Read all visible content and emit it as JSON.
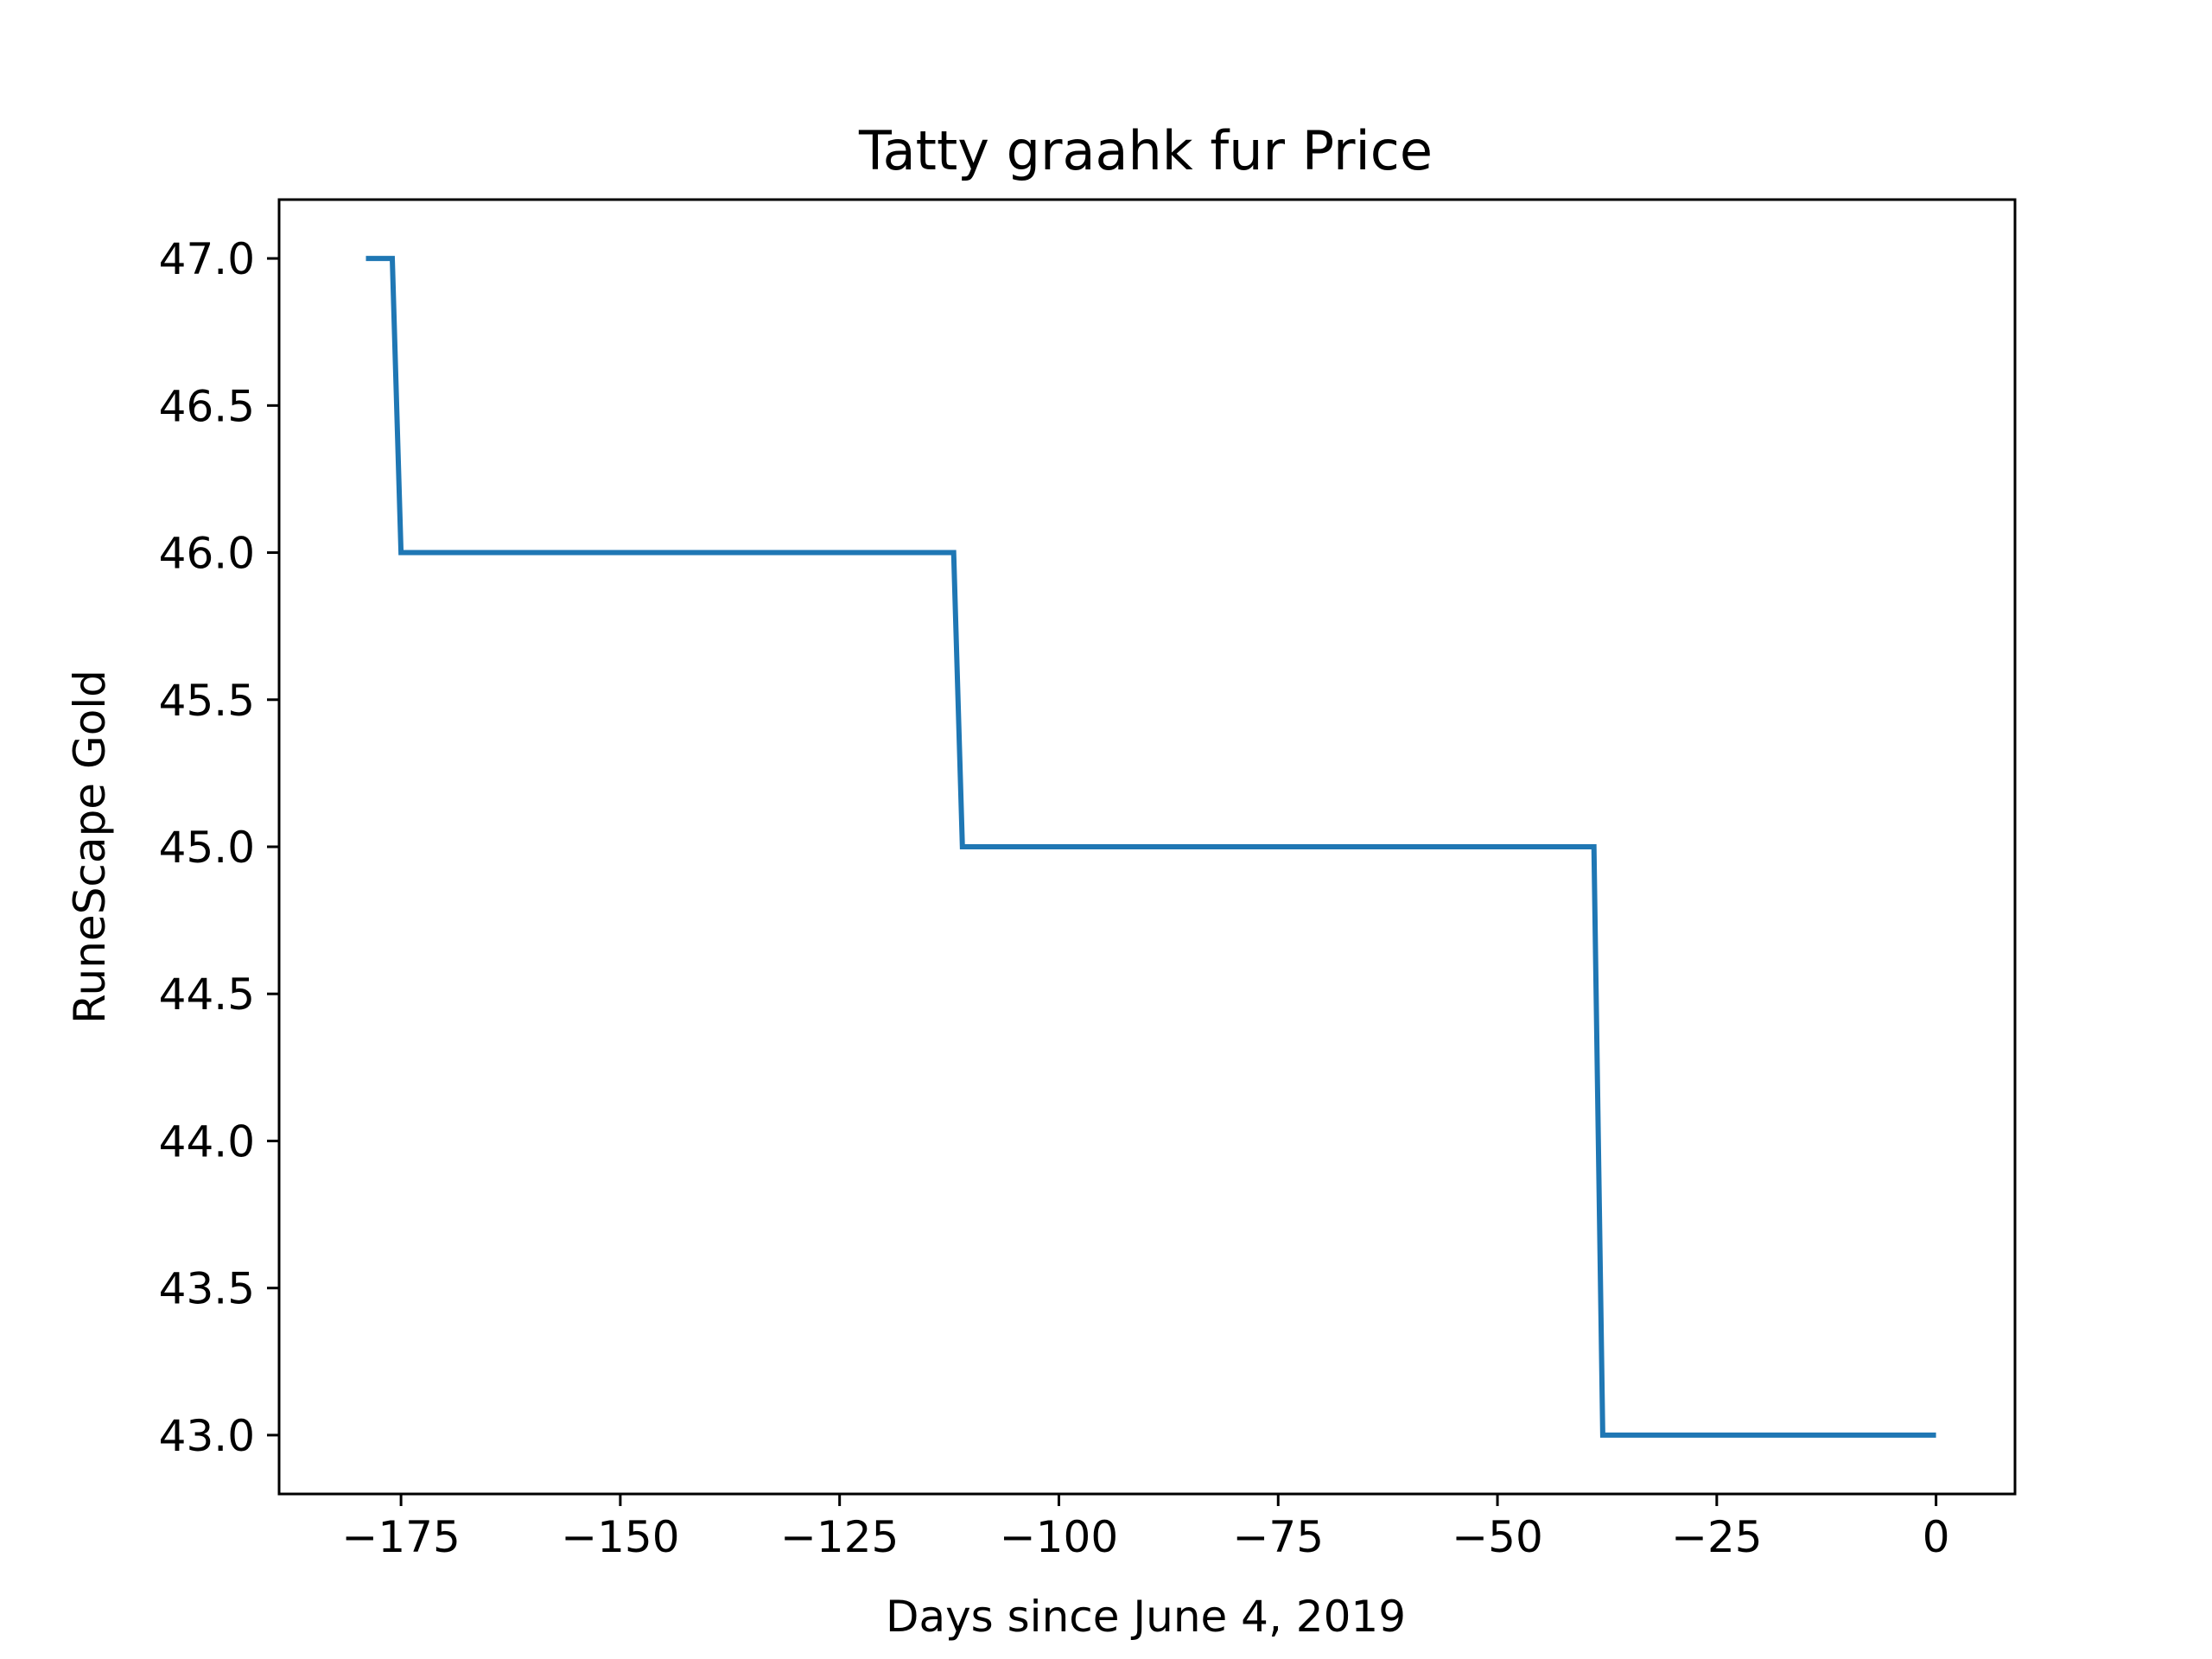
{
  "chart_data": {
    "type": "line",
    "title": "Tatty graahk fur Price",
    "xlabel": "Days since June 4, 2019",
    "ylabel": "RuneScape Gold",
    "xlim": [
      -188.9,
      9
    ],
    "ylim": [
      42.8,
      47.2
    ],
    "xticks": [
      -175,
      -150,
      -125,
      -100,
      -75,
      -50,
      -25,
      0
    ],
    "xtick_labels": [
      "−175",
      "−150",
      "−125",
      "−100",
      "−75",
      "−50",
      "−25",
      "0"
    ],
    "yticks": [
      43.0,
      43.5,
      44.0,
      44.5,
      45.0,
      45.5,
      46.0,
      46.5,
      47.0
    ],
    "ytick_labels": [
      "43.0",
      "43.5",
      "44.0",
      "44.5",
      "45.0",
      "45.5",
      "46.0",
      "46.5",
      "47.0"
    ],
    "grid": false,
    "legend": "none",
    "series": [
      {
        "color": "#1f77b4",
        "x": [
          -179,
          -176,
          -175,
          -112,
          -111,
          -39,
          -38,
          0
        ],
        "y": [
          47.0,
          47.0,
          46.0,
          46.0,
          45.0,
          45.0,
          43.0,
          43.0
        ]
      }
    ]
  }
}
